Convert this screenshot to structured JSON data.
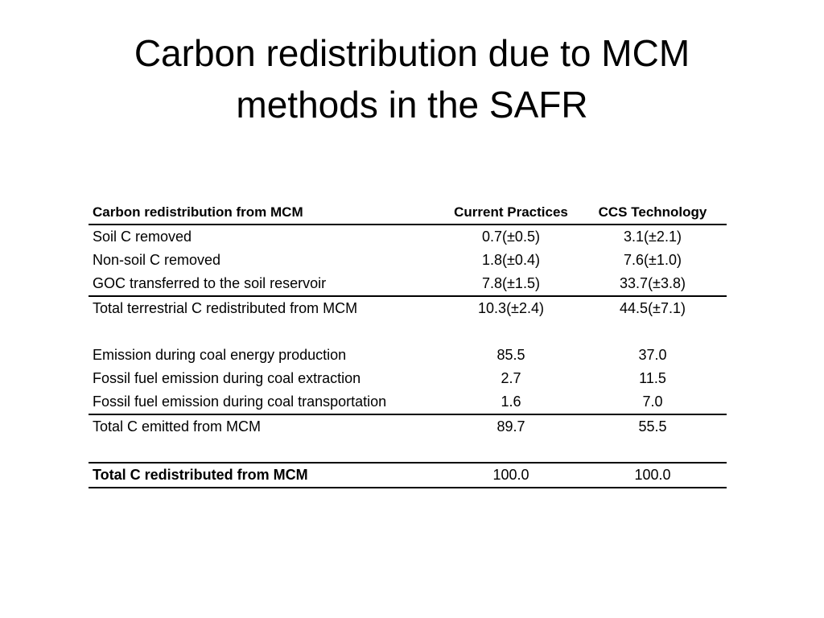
{
  "title": {
    "line1": "Carbon redistribution due to MCM",
    "line2": "methods in the SAFR"
  },
  "table": {
    "headers": [
      "Carbon redistribution from MCM",
      "Current Practices",
      "CCS Technology"
    ],
    "rows": [
      {
        "label": "Soil C removed",
        "current": "0.7(±0.5)",
        "ccs": "3.1(±2.1)"
      },
      {
        "label": "Non-soil C removed",
        "current": "1.8(±0.4)",
        "ccs": "7.6(±1.0)"
      },
      {
        "label": "GOC transferred to the soil reservoir",
        "current": "7.8(±1.5)",
        "ccs": "33.7(±3.8)"
      },
      {
        "label": "Total terrestrial C redistributed from MCM",
        "current": "10.3(±2.4)",
        "ccs": "44.5(±7.1)"
      },
      {
        "label": "",
        "current": "",
        "ccs": ""
      },
      {
        "label": "Emission during coal energy production",
        "current": "85.5",
        "ccs": "37.0"
      },
      {
        "label": "Fossil fuel emission during coal extraction",
        "current": "2.7",
        "ccs": "11.5"
      },
      {
        "label": "Fossil fuel emission during coal transportation",
        "current": "1.6",
        "ccs": "7.0"
      },
      {
        "label": "Total C emitted from MCM",
        "current": "89.7",
        "ccs": "55.5"
      },
      {
        "label": "",
        "current": "",
        "ccs": ""
      },
      {
        "label": "Total C redistributed from MCM",
        "current": "100.0",
        "ccs": "100.0"
      }
    ]
  }
}
